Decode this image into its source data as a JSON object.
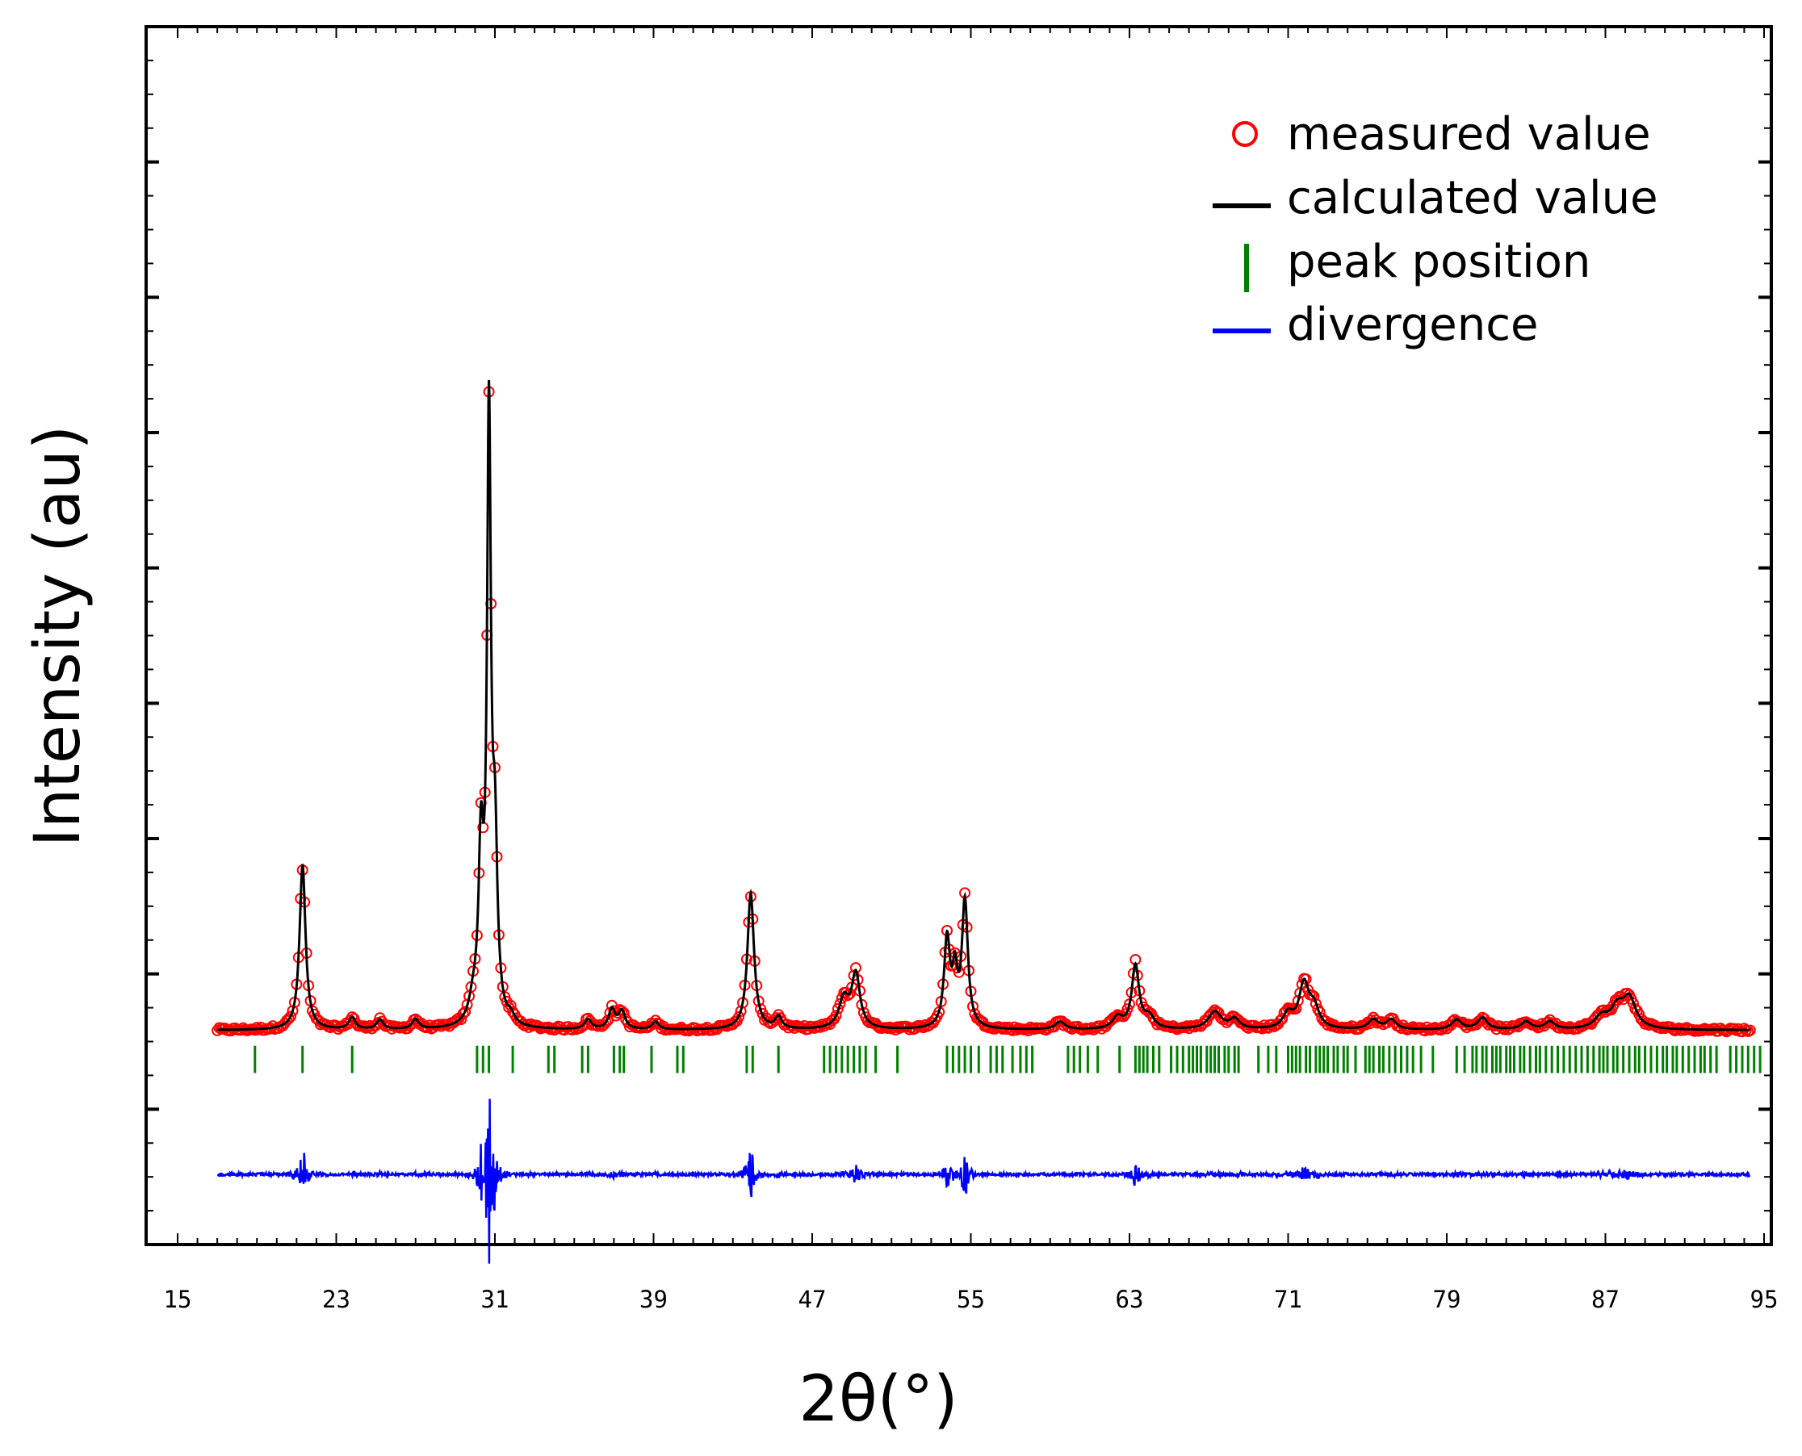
{
  "chart_data": {
    "type": "line",
    "title": "",
    "xlabel": "2θ(°)",
    "ylabel": "Intensity (au)",
    "xlim": [
      15,
      95
    ],
    "ylim": [
      -0.22,
      1.03
    ],
    "x_ticks": [
      15,
      23,
      31,
      39,
      47,
      55,
      63,
      71,
      79,
      87,
      95
    ],
    "x_tick_labels": [
      "15",
      "23",
      "31",
      "39",
      "47",
      "55",
      "63",
      "71",
      "79",
      "87",
      "95"
    ],
    "y_tick_labels_shown": false,
    "legend_position": "top-right",
    "colors": {
      "measured": "#ff0000",
      "calculated": "#000000",
      "peak": "#008000",
      "divergence": "#0000ff"
    },
    "legend": [
      {
        "key": "measured",
        "label": "measured value",
        "marker": "circle"
      },
      {
        "key": "calculated",
        "label": "calculated value",
        "marker": "line"
      },
      {
        "key": "peak",
        "label": "peak position",
        "marker": "vbar"
      },
      {
        "key": "divergence",
        "label": "divergence",
        "marker": "line"
      }
    ],
    "series": {
      "baseline": 0.0,
      "peaks": [
        {
          "center": 21.3,
          "height": 0.17,
          "width": 0.18
        },
        {
          "center": 23.8,
          "height": 0.012,
          "width": 0.2
        },
        {
          "center": 25.2,
          "height": 0.01,
          "width": 0.2
        },
        {
          "center": 27.0,
          "height": 0.01,
          "width": 0.2
        },
        {
          "center": 29.9,
          "height": 0.02,
          "width": 0.25
        },
        {
          "center": 30.3,
          "height": 0.17,
          "width": 0.15
        },
        {
          "center": 30.7,
          "height": 0.61,
          "width": 0.12
        },
        {
          "center": 31.0,
          "height": 0.17,
          "width": 0.15
        },
        {
          "center": 31.8,
          "height": 0.008,
          "width": 0.2
        },
        {
          "center": 35.7,
          "height": 0.01,
          "width": 0.2
        },
        {
          "center": 36.9,
          "height": 0.02,
          "width": 0.2
        },
        {
          "center": 37.4,
          "height": 0.018,
          "width": 0.2
        },
        {
          "center": 39.1,
          "height": 0.008,
          "width": 0.2
        },
        {
          "center": 43.9,
          "height": 0.14,
          "width": 0.2
        },
        {
          "center": 45.3,
          "height": 0.012,
          "width": 0.2
        },
        {
          "center": 48.6,
          "height": 0.03,
          "width": 0.3
        },
        {
          "center": 49.2,
          "height": 0.055,
          "width": 0.25
        },
        {
          "center": 53.8,
          "height": 0.09,
          "width": 0.18
        },
        {
          "center": 54.2,
          "height": 0.05,
          "width": 0.15
        },
        {
          "center": 54.7,
          "height": 0.13,
          "width": 0.18
        },
        {
          "center": 59.5,
          "height": 0.008,
          "width": 0.3
        },
        {
          "center": 62.4,
          "height": 0.012,
          "width": 0.3
        },
        {
          "center": 63.3,
          "height": 0.065,
          "width": 0.22
        },
        {
          "center": 64.0,
          "height": 0.012,
          "width": 0.3
        },
        {
          "center": 67.3,
          "height": 0.018,
          "width": 0.4
        },
        {
          "center": 68.3,
          "height": 0.01,
          "width": 0.3
        },
        {
          "center": 71.0,
          "height": 0.015,
          "width": 0.3
        },
        {
          "center": 71.8,
          "height": 0.045,
          "width": 0.3
        },
        {
          "center": 72.3,
          "height": 0.02,
          "width": 0.3
        },
        {
          "center": 75.3,
          "height": 0.01,
          "width": 0.3
        },
        {
          "center": 76.2,
          "height": 0.01,
          "width": 0.3
        },
        {
          "center": 79.5,
          "height": 0.01,
          "width": 0.3
        },
        {
          "center": 80.8,
          "height": 0.012,
          "width": 0.3
        },
        {
          "center": 83.0,
          "height": 0.008,
          "width": 0.3
        },
        {
          "center": 84.2,
          "height": 0.008,
          "width": 0.3
        },
        {
          "center": 86.8,
          "height": 0.012,
          "width": 0.4
        },
        {
          "center": 87.6,
          "height": 0.02,
          "width": 0.4
        },
        {
          "center": 88.2,
          "height": 0.03,
          "width": 0.4
        }
      ],
      "peak_positions": [
        18.9,
        21.3,
        23.8,
        30.1,
        30.4,
        30.7,
        31.9,
        33.7,
        34.0,
        35.4,
        35.7,
        37.0,
        37.3,
        37.5,
        38.9,
        40.2,
        40.5,
        43.7,
        44.0,
        45.3,
        47.6,
        47.9,
        48.2,
        48.5,
        48.8,
        49.1,
        49.4,
        49.7,
        50.2,
        51.3,
        53.8,
        54.1,
        54.4,
        54.7,
        55.0,
        55.4,
        56.0,
        56.3,
        56.6,
        57.1,
        57.5,
        57.8,
        58.1,
        59.9,
        60.2,
        60.5,
        60.9,
        61.4,
        62.5,
        63.3,
        63.5,
        63.7,
        63.9,
        64.2,
        64.5,
        65.1,
        65.4,
        65.7,
        66.0,
        66.2,
        66.4,
        66.6,
        66.9,
        67.1,
        67.3,
        67.5,
        67.8,
        68.0,
        68.3,
        68.5,
        69.5,
        70.0,
        70.4,
        71.0,
        71.2,
        71.4,
        71.6,
        71.9,
        72.1,
        72.4,
        72.6,
        72.8,
        73.0,
        73.3,
        73.5,
        73.8,
        74.0,
        74.4,
        74.9,
        75.1,
        75.3,
        75.6,
        75.8,
        76.1,
        76.4,
        76.7,
        77.0,
        77.3,
        77.7,
        78.3,
        79.5,
        79.9,
        80.3,
        80.5,
        80.8,
        81.0,
        81.3,
        81.5,
        81.7,
        82.0,
        82.2,
        82.4,
        82.7,
        82.9,
        83.2,
        83.5,
        83.7,
        84.0,
        84.3,
        84.6,
        84.9,
        85.2,
        85.5,
        85.8,
        86.1,
        86.4,
        86.7,
        86.9,
        87.1,
        87.4,
        87.6,
        87.9,
        88.2,
        88.5,
        88.7,
        89.0,
        89.3,
        89.6,
        89.9,
        90.1,
        90.4,
        90.6,
        90.9,
        91.2,
        91.5,
        91.8,
        92.0,
        92.3,
        92.6,
        93.3,
        93.6,
        93.9,
        94.2,
        94.5,
        94.8
      ]
    }
  }
}
